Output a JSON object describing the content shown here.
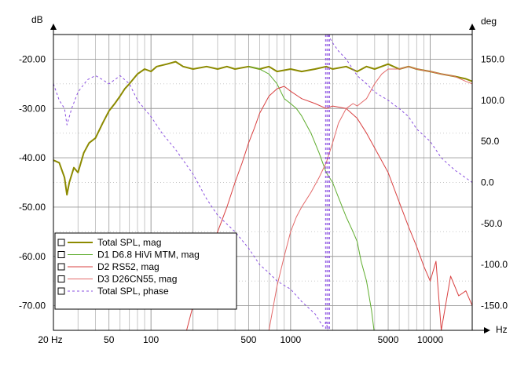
{
  "chart_data": {
    "type": "line",
    "title": "",
    "xlabel": "Hz",
    "ylabel_left": "dB",
    "ylabel_right": "deg",
    "x_scale": "log",
    "xlim": [
      20,
      20000
    ],
    "ylim_left": [
      -75,
      -15
    ],
    "ylim_right": [
      -180,
      180
    ],
    "x_tick_labels": [
      "20 Hz",
      "50",
      "100",
      "500",
      "1000",
      "5000",
      "10000"
    ],
    "x_tick_values": [
      20,
      50,
      100,
      500,
      1000,
      5000,
      10000
    ],
    "y_left_tick_labels": [
      "-20.00",
      "-30.00",
      "-40.00",
      "-50.00",
      "-60.00",
      "-70.00"
    ],
    "y_left_tick_values": [
      -20,
      -30,
      -40,
      -50,
      -60,
      -70
    ],
    "y_right_tick_labels": [
      "150.0",
      "100.0",
      "50.0",
      "0.0",
      "-50.0",
      "-100.0",
      "-150.0"
    ],
    "y_right_tick_values": [
      150,
      100,
      50,
      0,
      -50,
      -100,
      -150
    ],
    "grid": true,
    "legend_position": "bottom-left",
    "series": [
      {
        "name": "Total SPL, mag",
        "axis": "left",
        "color": "#8c8a00",
        "style": "solid-thick",
        "points": [
          [
            20,
            -40.5
          ],
          [
            22,
            -41
          ],
          [
            24,
            -44
          ],
          [
            25,
            -47.5
          ],
          [
            26,
            -45
          ],
          [
            28,
            -42
          ],
          [
            30,
            -43
          ],
          [
            33,
            -39
          ],
          [
            36,
            -37
          ],
          [
            40,
            -36
          ],
          [
            45,
            -33
          ],
          [
            50,
            -30.5
          ],
          [
            55,
            -29
          ],
          [
            60,
            -27.5
          ],
          [
            65,
            -26
          ],
          [
            70,
            -25
          ],
          [
            80,
            -23
          ],
          [
            90,
            -22
          ],
          [
            100,
            -22.5
          ],
          [
            110,
            -21.5
          ],
          [
            130,
            -21
          ],
          [
            150,
            -20.5
          ],
          [
            170,
            -21.5
          ],
          [
            200,
            -22
          ],
          [
            250,
            -21.5
          ],
          [
            300,
            -22
          ],
          [
            350,
            -21.5
          ],
          [
            400,
            -22
          ],
          [
            500,
            -21.5
          ],
          [
            600,
            -22
          ],
          [
            700,
            -21.5
          ],
          [
            800,
            -22.5
          ],
          [
            1000,
            -22
          ],
          [
            1200,
            -22.5
          ],
          [
            1500,
            -22
          ],
          [
            1800,
            -21.5
          ],
          [
            2000,
            -22
          ],
          [
            2500,
            -21.5
          ],
          [
            3000,
            -22.5
          ],
          [
            3500,
            -21.5
          ],
          [
            4000,
            -22
          ],
          [
            5000,
            -21
          ],
          [
            6000,
            -22
          ],
          [
            7000,
            -21.5
          ],
          [
            8000,
            -22
          ],
          [
            10000,
            -22.5
          ],
          [
            12000,
            -23
          ],
          [
            15000,
            -23.5
          ],
          [
            18000,
            -24
          ],
          [
            20000,
            -24.5
          ]
        ]
      },
      {
        "name": "D1  D6.8  HiVi MTM, mag",
        "axis": "left",
        "color": "#5fad2e",
        "style": "solid",
        "points": [
          [
            500,
            -21.5
          ],
          [
            600,
            -22
          ],
          [
            700,
            -23
          ],
          [
            800,
            -25
          ],
          [
            900,
            -28
          ],
          [
            1000,
            -29
          ],
          [
            1100,
            -30
          ],
          [
            1200,
            -31.5
          ],
          [
            1400,
            -35
          ],
          [
            1600,
            -39
          ],
          [
            1800,
            -43
          ],
          [
            2000,
            -45
          ],
          [
            2200,
            -48
          ],
          [
            2500,
            -52
          ],
          [
            2800,
            -55
          ],
          [
            3000,
            -57
          ],
          [
            3200,
            -61
          ],
          [
            3500,
            -65
          ],
          [
            3800,
            -71
          ],
          [
            4000,
            -76
          ]
        ]
      },
      {
        "name": "D2  RS52, mag",
        "axis": "left",
        "color": "#d94141",
        "style": "solid",
        "points": [
          [
            180,
            -75
          ],
          [
            200,
            -70
          ],
          [
            230,
            -65
          ],
          [
            260,
            -60
          ],
          [
            300,
            -55
          ],
          [
            350,
            -50
          ],
          [
            400,
            -45
          ],
          [
            450,
            -41
          ],
          [
            500,
            -37
          ],
          [
            550,
            -34
          ],
          [
            600,
            -31
          ],
          [
            700,
            -27.5
          ],
          [
            800,
            -26
          ],
          [
            900,
            -25.5
          ],
          [
            1000,
            -26.5
          ],
          [
            1200,
            -28
          ],
          [
            1500,
            -29
          ],
          [
            1800,
            -30
          ],
          [
            2000,
            -29.5
          ],
          [
            2500,
            -30
          ],
          [
            3000,
            -32
          ],
          [
            3500,
            -35
          ],
          [
            4000,
            -38
          ],
          [
            5000,
            -43
          ],
          [
            6000,
            -49
          ],
          [
            7000,
            -54
          ],
          [
            8000,
            -58
          ],
          [
            9000,
            -62
          ],
          [
            10000,
            -65
          ],
          [
            11000,
            -61
          ],
          [
            12000,
            -75
          ],
          [
            14000,
            -64
          ],
          [
            16000,
            -68
          ],
          [
            18000,
            -67
          ],
          [
            20000,
            -70
          ]
        ]
      },
      {
        "name": "D3  D26CN55, mag",
        "axis": "left",
        "color": "#e36a6a",
        "style": "solid",
        "points": [
          [
            700,
            -75
          ],
          [
            800,
            -66
          ],
          [
            900,
            -60
          ],
          [
            1000,
            -55
          ],
          [
            1100,
            -52
          ],
          [
            1200,
            -50
          ],
          [
            1400,
            -47
          ],
          [
            1600,
            -44
          ],
          [
            1800,
            -41
          ],
          [
            2000,
            -37
          ],
          [
            2200,
            -33
          ],
          [
            2500,
            -30
          ],
          [
            2800,
            -29
          ],
          [
            3000,
            -29.5
          ],
          [
            3500,
            -28
          ],
          [
            4000,
            -25
          ],
          [
            4500,
            -23
          ],
          [
            5000,
            -22
          ],
          [
            6000,
            -22
          ],
          [
            7000,
            -21.5
          ],
          [
            8000,
            -22
          ],
          [
            10000,
            -22.5
          ],
          [
            12000,
            -23
          ],
          [
            15000,
            -23.5
          ],
          [
            18000,
            -24.5
          ],
          [
            20000,
            -25
          ]
        ]
      },
      {
        "name": "Total SPL, phase",
        "axis": "right",
        "color": "#8a4fe0",
        "style": "dashed",
        "points": [
          [
            20,
            120
          ],
          [
            22,
            100
          ],
          [
            24,
            90
          ],
          [
            25,
            70
          ],
          [
            27,
            90
          ],
          [
            30,
            110
          ],
          [
            35,
            125
          ],
          [
            40,
            130
          ],
          [
            45,
            125
          ],
          [
            50,
            120
          ],
          [
            55,
            125
          ],
          [
            60,
            130
          ],
          [
            70,
            120
          ],
          [
            80,
            100
          ],
          [
            100,
            80
          ],
          [
            120,
            60
          ],
          [
            150,
            40
          ],
          [
            200,
            10
          ],
          [
            250,
            -20
          ],
          [
            300,
            -40
          ],
          [
            400,
            -60
          ],
          [
            500,
            -80
          ],
          [
            600,
            -100
          ],
          [
            700,
            -110
          ],
          [
            800,
            -120
          ],
          [
            1000,
            -130
          ],
          [
            1200,
            -145
          ],
          [
            1500,
            -160
          ],
          [
            1700,
            -175
          ],
          [
            1800,
            -170
          ],
          [
            1850,
            180
          ],
          [
            2000,
            170
          ],
          [
            2200,
            160
          ],
          [
            2500,
            150
          ],
          [
            3000,
            130
          ],
          [
            3500,
            120
          ],
          [
            4000,
            110
          ],
          [
            5000,
            100
          ],
          [
            6000,
            90
          ],
          [
            7000,
            80
          ],
          [
            8000,
            65
          ],
          [
            10000,
            50
          ],
          [
            12000,
            30
          ],
          [
            15000,
            15
          ],
          [
            20000,
            0
          ]
        ]
      }
    ]
  },
  "legend": [
    {
      "label": "Total SPL, mag",
      "color": "#8c8a00",
      "style": "solid-thick"
    },
    {
      "label": "D1  D6.8  HiVi MTM, mag",
      "color": "#5fad2e",
      "style": "solid"
    },
    {
      "label": "D2  RS52, mag",
      "color": "#d94141",
      "style": "solid"
    },
    {
      "label": "D3  D26CN55, mag",
      "color": "#e36a6a",
      "style": "solid"
    },
    {
      "label": "Total SPL, phase",
      "color": "#8a4fe0",
      "style": "dashed"
    }
  ]
}
